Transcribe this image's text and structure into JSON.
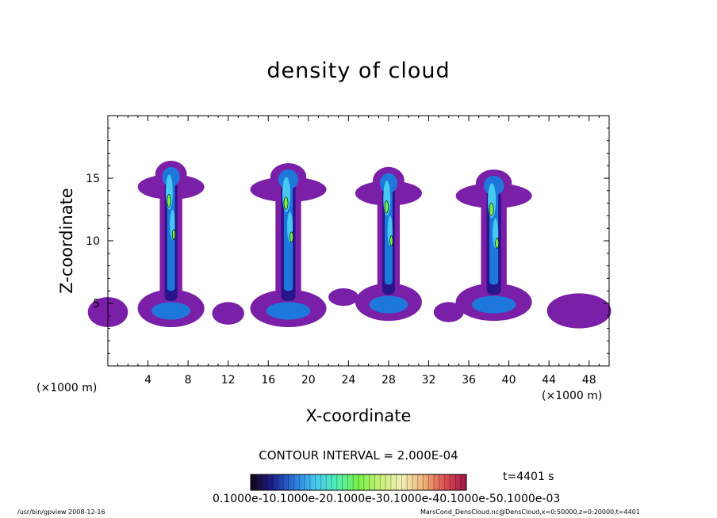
{
  "chart_data": {
    "type": "heatmap",
    "title": "density of cloud",
    "xlabel": "X-coordinate",
    "ylabel": "Z-coordinate",
    "x_unit_label": "(×1000 m)",
    "xlim": [
      0,
      50
    ],
    "ylim": [
      0,
      20
    ],
    "x_ticks": [
      4,
      8,
      12,
      16,
      20,
      24,
      28,
      32,
      36,
      40,
      44,
      48
    ],
    "y_ticks": [
      5,
      10,
      15
    ],
    "clouds": [
      {
        "center_x": 6.3,
        "top_z": 16.5,
        "base_z": 3.0,
        "width_x": 3.5
      },
      {
        "center_x": 18.0,
        "top_z": 16.3,
        "base_z": 3.0,
        "width_x": 4.0
      },
      {
        "center_x": 28.0,
        "top_z": 16.0,
        "base_z": 3.5,
        "width_x": 3.5
      },
      {
        "center_x": 38.5,
        "top_z": 15.8,
        "base_z": 3.5,
        "width_x": 4.0
      }
    ],
    "contour_interval_text": "CONTOUR INTERVAL = 2.000E-04",
    "time_text": "t=4401 s",
    "colorbar_tick_text": "0.1000e-10.1000e-20.1000e-30.1000e-40.1000e-50.1000e-03",
    "colorbar_colors": [
      "#140414",
      "#1e1e8c",
      "#2878dc",
      "#46c8f0",
      "#50f0b4",
      "#78f046",
      "#c8f078",
      "#f0f0b4",
      "#f0b478",
      "#dc5050",
      "#a0144b"
    ]
  },
  "footer": {
    "left": "/usr/bin/gpview   2008-12-16",
    "right": "MarsCond_DensCloud.nc@DensCloud,x=0:50000,z=0:20000,t=4401"
  }
}
